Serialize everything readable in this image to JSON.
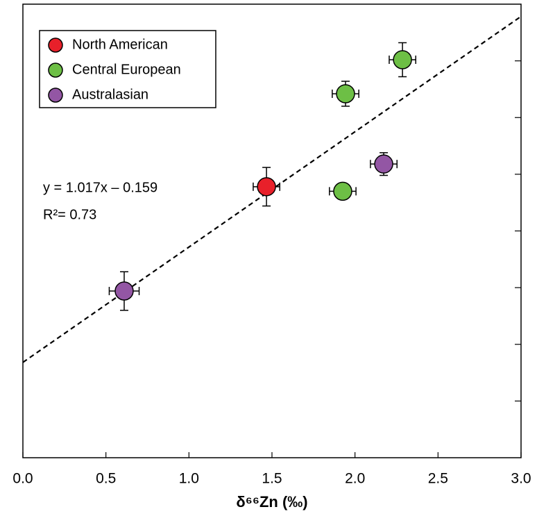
{
  "chart_data": {
    "type": "scatter",
    "x_label": "δ⁶⁶Zn (‰)",
    "xlim": [
      0,
      3
    ],
    "ylim": [
      -1,
      3
    ],
    "xticks": [
      {
        "value": 0,
        "label": "0.0"
      },
      {
        "value": 0.5,
        "label": "0.5"
      },
      {
        "value": 1,
        "label": "1.0"
      },
      {
        "value": 1.5,
        "label": "1.5"
      },
      {
        "value": 2,
        "label": "2.0"
      },
      {
        "value": 2.5,
        "label": "2.5"
      },
      {
        "value": 3,
        "label": "3.0"
      }
    ],
    "yticks": [
      -0.5,
      0,
      0.5,
      1,
      1.5,
      2,
      2.5
    ],
    "legend": "upper left",
    "series": [
      {
        "name": "North American",
        "color": "#e8202a",
        "x": [
          1.467
        ],
        "values": [
          1.39
        ],
        "x_err": [
          0.08
        ],
        "y_err": [
          0.17
        ]
      },
      {
        "name": "Central European",
        "color": "#6dbf45",
        "x": [
          2.286,
          1.943,
          1.926
        ],
        "values": [
          2.51,
          2.21,
          1.35
        ],
        "x_err": [
          0.08,
          0.08,
          0.08
        ],
        "y_err": [
          0.15,
          0.11,
          0.05
        ]
      },
      {
        "name": "Australasian",
        "color": "#9356a4",
        "x": [
          2.173,
          0.61
        ],
        "values": [
          1.59,
          0.47
        ],
        "x_err": [
          0.08,
          0.09
        ],
        "y_err": [
          0.1,
          0.17
        ]
      }
    ],
    "fit": {
      "slope": 1.017,
      "intercept": -0.159,
      "label": "y = 1.017x – 0.159",
      "r2_label": "R²= 0.73"
    }
  }
}
